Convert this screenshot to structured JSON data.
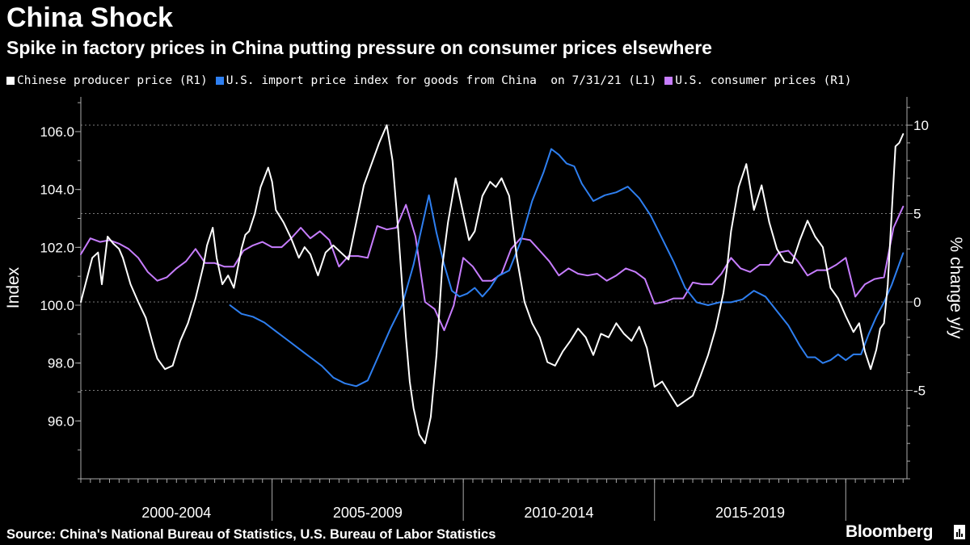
{
  "header": {
    "title": "China Shock",
    "subtitle": "Spike in factory prices in China putting pressure on consumer prices elsewhere"
  },
  "legend": [
    {
      "label": "Chinese producer price (R1)",
      "color": "#ffffff"
    },
    {
      "label": "U.S. import price index for goods from China  on 7/31/21 (L1)",
      "color": "#2e7ff0"
    },
    {
      "label": "U.S. consumer prices (R1)",
      "color": "#c77dff"
    }
  ],
  "footer": {
    "source": "Source: China's National Bureau of Statistics, U.S. Bureau of Labor Statistics",
    "brand": "Bloomberg"
  },
  "chart_data": {
    "type": "line",
    "title": "China Shock",
    "subtitle": "Spike in factory prices in China putting pressure on consumer prices elsewhere",
    "x_range": [
      2000.0,
      2021.6
    ],
    "x_category_labels": [
      {
        "label": "2000-2004",
        "center": 2002.5
      },
      {
        "label": "2005-2009",
        "center": 2007.5
      },
      {
        "label": "2010-2014",
        "center": 2012.5
      },
      {
        "label": "2015-2019",
        "center": 2017.5
      }
    ],
    "x_separators": [
      2005,
      2010,
      2015,
      2020
    ],
    "left_axis": {
      "label": "Index",
      "range": [
        94.0,
        107.2
      ],
      "ticks": [
        96.0,
        98.0,
        100.0,
        102.0,
        104.0,
        106.0
      ],
      "tick_labels": [
        "96.0",
        "98.0",
        "100.0",
        "102.0",
        "104.0",
        "106.0"
      ]
    },
    "right_axis": {
      "label": "% change y/y",
      "range": [
        -10,
        11.6
      ],
      "ticks": [
        -5,
        0,
        5,
        10
      ],
      "tick_labels": [
        "-5",
        "0",
        "5",
        "10"
      ]
    },
    "grid": "dotted at right-axis ticks",
    "series": [
      {
        "name": "Chinese producer price (R1)",
        "axis": "right",
        "color": "#ffffff",
        "x": [
          2000.0,
          2000.3,
          2000.45,
          2000.55,
          2000.7,
          2000.85,
          2001.0,
          2001.1,
          2001.3,
          2001.5,
          2001.7,
          2001.9,
          2002.0,
          2002.2,
          2002.4,
          2002.6,
          2002.8,
          2003.0,
          2003.2,
          2003.3,
          2003.45,
          2003.55,
          2003.7,
          2003.85,
          2004.0,
          2004.2,
          2004.3,
          2004.4,
          2004.55,
          2004.7,
          2004.9,
          2005.0,
          2005.1,
          2005.3,
          2005.5,
          2005.7,
          2005.85,
          2006.0,
          2006.2,
          2006.4,
          2006.6,
          2006.8,
          2007.0,
          2007.2,
          2007.4,
          2007.6,
          2007.8,
          2008.0,
          2008.15,
          2008.3,
          2008.4,
          2008.5,
          2008.6,
          2008.7,
          2008.85,
          2009.0,
          2009.15,
          2009.3,
          2009.45,
          2009.6,
          2009.8,
          2010.0,
          2010.15,
          2010.3,
          2010.5,
          2010.7,
          2010.85,
          2011.0,
          2011.2,
          2011.4,
          2011.6,
          2011.8,
          2012.0,
          2012.2,
          2012.4,
          2012.6,
          2012.8,
          2013.0,
          2013.2,
          2013.4,
          2013.6,
          2013.8,
          2014.0,
          2014.2,
          2014.4,
          2014.6,
          2014.8,
          2015.0,
          2015.2,
          2015.4,
          2015.6,
          2015.8,
          2016.0,
          2016.2,
          2016.4,
          2016.6,
          2016.8,
          2016.9,
          2017.0,
          2017.2,
          2017.4,
          2017.6,
          2017.8,
          2018.0,
          2018.2,
          2018.4,
          2018.6,
          2018.8,
          2019.0,
          2019.2,
          2019.4,
          2019.6,
          2019.8,
          2020.0,
          2020.2,
          2020.35,
          2020.5,
          2020.65,
          2020.8,
          2020.9,
          2021.0,
          2021.1,
          2021.2,
          2021.3,
          2021.4,
          2021.5
        ],
        "y": [
          0.0,
          2.5,
          2.8,
          1.0,
          3.7,
          3.3,
          3.0,
          2.5,
          1.0,
          0.0,
          -0.9,
          -2.5,
          -3.2,
          -3.8,
          -3.6,
          -2.2,
          -1.2,
          0.2,
          2.0,
          3.2,
          4.2,
          2.5,
          1.0,
          1.5,
          0.8,
          3.0,
          3.8,
          4.0,
          5.0,
          6.5,
          7.6,
          6.8,
          5.2,
          4.5,
          3.6,
          2.5,
          3.1,
          2.7,
          1.5,
          2.8,
          3.2,
          2.8,
          2.4,
          4.5,
          6.6,
          7.8,
          9.0,
          10.0,
          8.0,
          4.0,
          1.0,
          -2.0,
          -4.5,
          -6.0,
          -7.5,
          -8.0,
          -6.5,
          -3.0,
          2.0,
          4.5,
          7.0,
          5.0,
          3.5,
          4.0,
          6.0,
          6.8,
          6.5,
          7.0,
          6.0,
          2.5,
          0.0,
          -1.2,
          -2.0,
          -3.4,
          -3.6,
          -2.8,
          -2.2,
          -1.5,
          -2.0,
          -3.0,
          -1.8,
          -2.0,
          -1.2,
          -1.8,
          -2.2,
          -1.4,
          -2.6,
          -4.8,
          -4.5,
          -5.2,
          -5.9,
          -5.6,
          -5.3,
          -4.2,
          -3.0,
          -1.5,
          0.5,
          2.0,
          4.0,
          6.5,
          7.8,
          5.2,
          6.6,
          4.5,
          3.0,
          2.3,
          2.2,
          3.5,
          4.6,
          3.7,
          3.1,
          0.8,
          0.2,
          -0.8,
          -1.7,
          -1.2,
          -2.8,
          -3.8,
          -2.7,
          -1.5,
          -1.2,
          1.0,
          5.0,
          8.8,
          9.0,
          9.5
        ]
      },
      {
        "name": "U.S. import price index for goods from China  on 7/31/21 (L1)",
        "axis": "left",
        "color": "#2e7ff0",
        "x": [
          2003.9,
          2004.2,
          2004.5,
          2004.8,
          2005.1,
          2005.4,
          2005.7,
          2006.0,
          2006.3,
          2006.6,
          2006.9,
          2007.2,
          2007.5,
          2007.8,
          2008.1,
          2008.4,
          2008.7,
          2008.9,
          2009.1,
          2009.3,
          2009.5,
          2009.7,
          2009.9,
          2010.1,
          2010.3,
          2010.5,
          2010.7,
          2010.9,
          2011.2,
          2011.5,
          2011.8,
          2012.1,
          2012.3,
          2012.5,
          2012.7,
          2012.9,
          2013.1,
          2013.4,
          2013.7,
          2014.0,
          2014.3,
          2014.6,
          2014.9,
          2015.2,
          2015.5,
          2015.8,
          2016.1,
          2016.4,
          2016.7,
          2017.0,
          2017.3,
          2017.6,
          2017.9,
          2018.2,
          2018.5,
          2018.8,
          2019.0,
          2019.2,
          2019.4,
          2019.6,
          2019.8,
          2020.0,
          2020.2,
          2020.4,
          2020.6,
          2020.8,
          2021.0,
          2021.2,
          2021.5
        ],
        "y": [
          100.0,
          99.7,
          99.6,
          99.4,
          99.1,
          98.8,
          98.5,
          98.2,
          97.9,
          97.5,
          97.3,
          97.2,
          97.4,
          98.3,
          99.2,
          100.0,
          101.4,
          102.6,
          103.8,
          102.5,
          101.4,
          100.5,
          100.3,
          100.4,
          100.6,
          100.3,
          100.6,
          101.0,
          101.2,
          102.2,
          103.6,
          104.6,
          105.4,
          105.2,
          104.9,
          104.8,
          104.2,
          103.6,
          103.8,
          103.9,
          104.1,
          103.7,
          103.1,
          102.3,
          101.5,
          100.6,
          100.1,
          100.0,
          100.1,
          100.1,
          100.2,
          100.5,
          100.3,
          99.8,
          99.3,
          98.6,
          98.2,
          98.2,
          98.0,
          98.1,
          98.3,
          98.1,
          98.3,
          98.3,
          99.0,
          99.6,
          100.1,
          100.7,
          101.8
        ]
      },
      {
        "name": "U.S. consumer prices (R1)",
        "axis": "right",
        "color": "#c77dff",
        "x": [
          2000.0,
          2000.25,
          2000.5,
          2000.75,
          2001.0,
          2001.25,
          2001.5,
          2001.75,
          2002.0,
          2002.25,
          2002.5,
          2002.75,
          2003.0,
          2003.25,
          2003.5,
          2003.75,
          2004.0,
          2004.25,
          2004.5,
          2004.75,
          2005.0,
          2005.25,
          2005.5,
          2005.75,
          2006.0,
          2006.25,
          2006.5,
          2006.75,
          2007.0,
          2007.25,
          2007.5,
          2007.75,
          2008.0,
          2008.25,
          2008.5,
          2008.75,
          2009.0,
          2009.25,
          2009.5,
          2009.75,
          2010.0,
          2010.25,
          2010.5,
          2010.75,
          2011.0,
          2011.25,
          2011.5,
          2011.75,
          2012.0,
          2012.25,
          2012.5,
          2012.75,
          2013.0,
          2013.25,
          2013.5,
          2013.75,
          2014.0,
          2014.25,
          2014.5,
          2014.75,
          2015.0,
          2015.25,
          2015.5,
          2015.75,
          2016.0,
          2016.25,
          2016.5,
          2016.75,
          2017.0,
          2017.25,
          2017.5,
          2017.75,
          2018.0,
          2018.25,
          2018.5,
          2018.75,
          2019.0,
          2019.25,
          2019.5,
          2019.75,
          2020.0,
          2020.25,
          2020.5,
          2020.75,
          2021.0,
          2021.25,
          2021.5
        ],
        "y": [
          2.7,
          3.6,
          3.4,
          3.5,
          3.3,
          3.0,
          2.5,
          1.7,
          1.2,
          1.4,
          1.9,
          2.3,
          3.0,
          2.2,
          2.2,
          2.0,
          2.0,
          2.9,
          3.2,
          3.4,
          3.1,
          3.1,
          3.6,
          4.2,
          3.6,
          4.0,
          3.5,
          2.0,
          2.6,
          2.6,
          2.5,
          4.3,
          4.1,
          4.2,
          5.5,
          3.7,
          0.0,
          -0.4,
          -1.6,
          -0.2,
          2.5,
          2.0,
          1.2,
          1.2,
          1.6,
          3.0,
          3.6,
          3.5,
          2.9,
          2.3,
          1.5,
          1.9,
          1.6,
          1.5,
          1.6,
          1.2,
          1.5,
          1.9,
          1.7,
          1.3,
          -0.1,
          0.0,
          0.2,
          0.2,
          1.1,
          1.0,
          1.0,
          1.6,
          2.5,
          1.9,
          1.7,
          2.1,
          2.1,
          2.8,
          2.9,
          2.3,
          1.5,
          1.8,
          1.8,
          2.1,
          2.5,
          0.3,
          1.0,
          1.3,
          1.4,
          4.2,
          5.4
        ]
      }
    ]
  }
}
